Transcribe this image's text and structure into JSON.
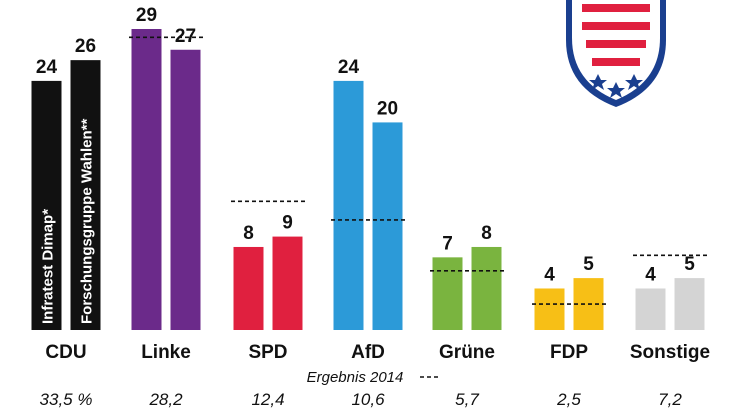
{
  "chart_data": {
    "type": "bar",
    "categories": [
      "CDU",
      "Linke",
      "SPD",
      "AfD",
      "Grüne",
      "FDP",
      "Sonstige"
    ],
    "series": [
      {
        "name": "Infratest Dimap*",
        "values": [
          24,
          29,
          8,
          24,
          7,
          4,
          4
        ]
      },
      {
        "name": "Forschungsgruppe Wahlen**",
        "values": [
          26,
          27,
          9,
          20,
          8,
          5,
          5
        ]
      }
    ],
    "result_2014": [
      33.5,
      28.2,
      12.4,
      10.6,
      5.7,
      2.5,
      7.2
    ],
    "result_2014_labels": [
      "33,5 %",
      "28,2",
      "12,4",
      "10,6",
      "5,7",
      "2,5",
      "7,2"
    ],
    "legend_text": "Ergebnis 2014",
    "colors": [
      "#111111",
      "#6b2a8a",
      "#e0203f",
      "#2c9ad8",
      "#7ab43f",
      "#f7bf16",
      "#d4d4d4"
    ],
    "ylim": [
      0,
      29
    ],
    "legend_placement": "bottom-center",
    "grid": false
  },
  "emblem": {
    "icon": "thuringia-coat-of-arms-icon",
    "colors": [
      "#1a3f8f",
      "#e0203f",
      "#ffffff"
    ]
  }
}
